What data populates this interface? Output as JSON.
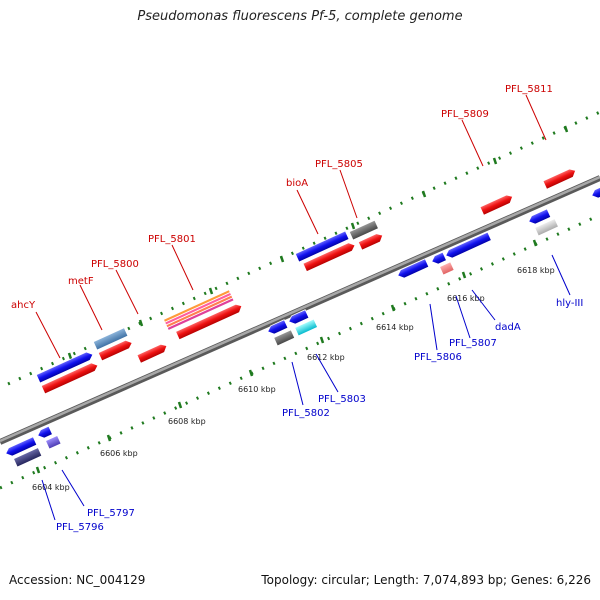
{
  "title": "Pseudomonas fluorescens Pf-5, complete genome",
  "accession_text": "Accession: NC_004129",
  "summary_text": "Topology: circular; Length: 7,074,893 bp; Genes: 6,226",
  "colors": {
    "backbone": "#8c8c8c",
    "tick": "#1f7a1f",
    "forward_label": "#cc0000",
    "reverse_label": "#0000cc"
  },
  "scale_labels": [
    "6604 kbp",
    "6606 kbp",
    "6608 kbp",
    "6610 kbp",
    "6612 kbp",
    "6614 kbp",
    "6616 kbp",
    "6618 kbp"
  ],
  "forward_labels": [
    "ahcY",
    "metF",
    "PFL_5800",
    "PFL_5801",
    "bioA",
    "PFL_5805",
    "PFL_5809",
    "PFL_5811"
  ],
  "reverse_labels": [
    "PFL_5796",
    "PFL_5797",
    "PFL_5802",
    "PFL_5803",
    "PFL_5806",
    "PFL_5807",
    "dadA",
    "hly-III"
  ]
}
